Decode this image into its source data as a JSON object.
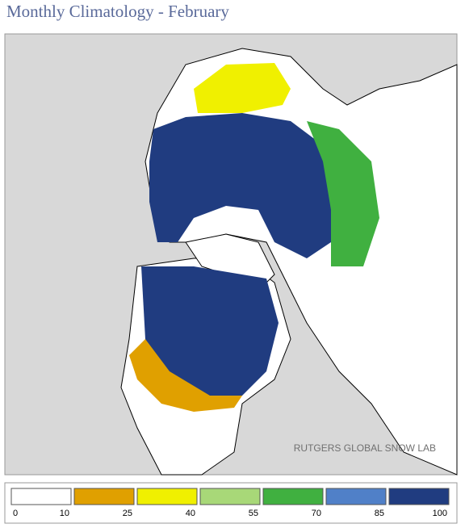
{
  "title": "Monthly Climatology - February",
  "credit": "RUTGERS GLOBAL SNOW LAB",
  "legend": {
    "ticks": [
      0,
      10,
      25,
      40,
      55,
      70,
      85,
      100
    ],
    "colors": [
      "#ffffff",
      "#e0a000",
      "#f0f000",
      "#a8d878",
      "#40b040",
      "#5080c8",
      "#203c80"
    ]
  }
}
